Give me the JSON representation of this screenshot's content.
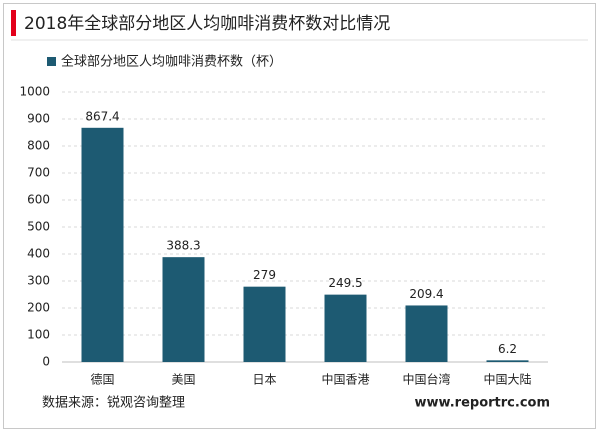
{
  "chart_data": {
    "type": "bar",
    "title": "2018年全球部分地区人均咖啡消费杯数对比情况",
    "legend": "全球部分地区人均咖啡消费杯数（杯）",
    "categories": [
      "德国",
      "美国",
      "日本",
      "中国香港",
      "中国台湾",
      "中国大陆"
    ],
    "values": [
      867.4,
      388.3,
      279,
      249.5,
      209.4,
      6.2
    ],
    "color": "#1d5a72",
    "ylim": [
      0,
      1000
    ],
    "yticks": [
      0,
      100,
      200,
      300,
      400,
      500,
      600,
      700,
      800,
      900,
      1000
    ],
    "grid": true,
    "source": "数据来源：锐观咨询整理",
    "website": "www.reportrc.com"
  }
}
